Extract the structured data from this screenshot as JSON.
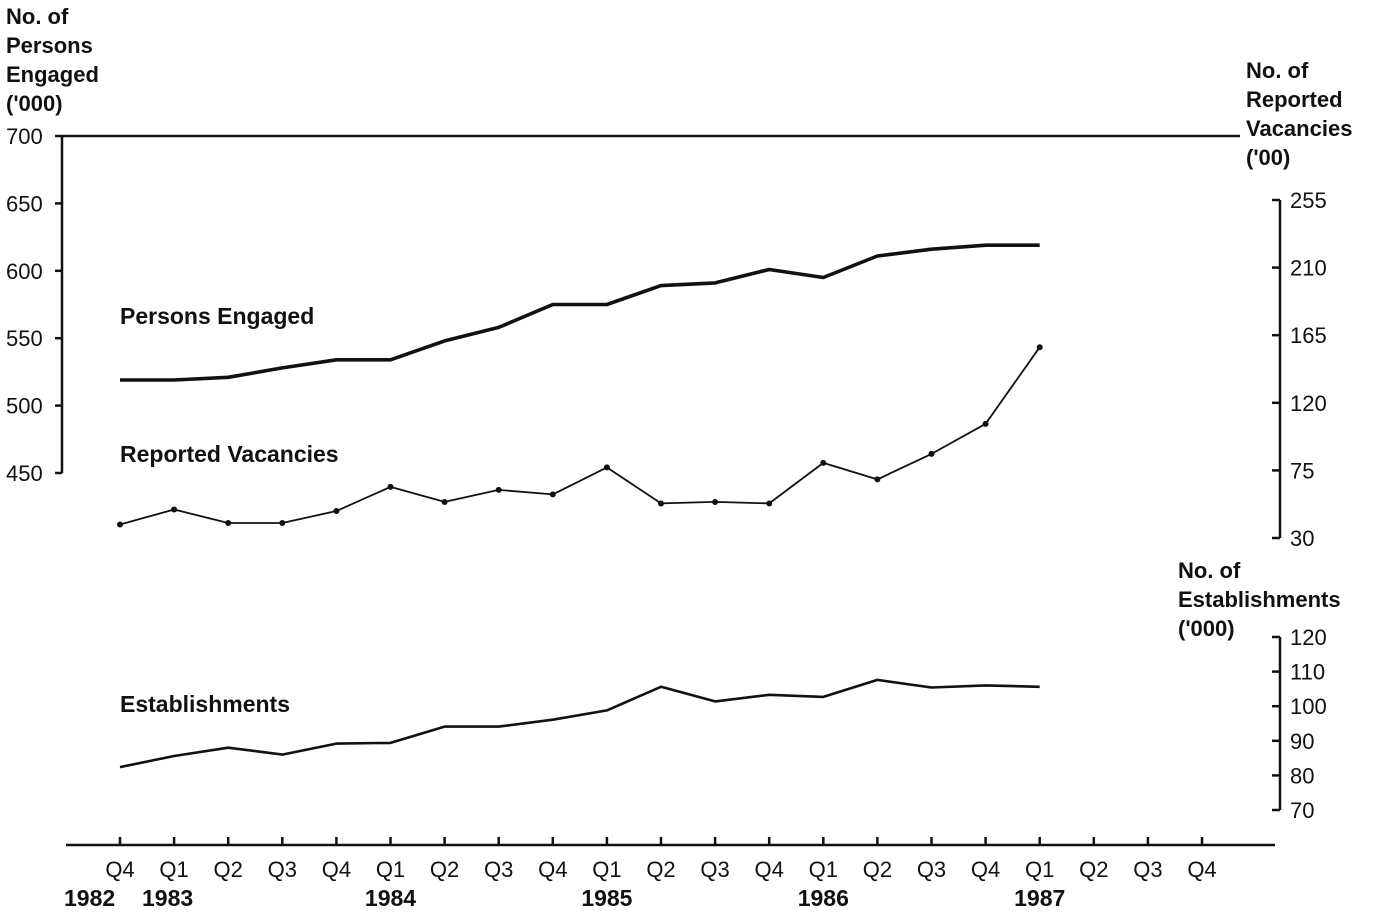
{
  "chart_data": {
    "type": "line",
    "x_axis": {
      "quarters": [
        "Q4",
        "Q1",
        "Q2",
        "Q3",
        "Q4",
        "Q1",
        "Q2",
        "Q3",
        "Q4",
        "Q1",
        "Q2",
        "Q3",
        "Q4",
        "Q1",
        "Q2",
        "Q3",
        "Q4",
        "Q1",
        "Q2",
        "Q3",
        "Q4"
      ],
      "years": [
        {
          "label": "1982",
          "quarter_index": 0
        },
        {
          "label": "1983",
          "quarter_index": 1
        },
        {
          "label": "1984",
          "quarter_index": 5
        },
        {
          "label": "1985",
          "quarter_index": 9
        },
        {
          "label": "1986",
          "quarter_index": 13
        },
        {
          "label": "1987",
          "quarter_index": 17
        }
      ]
    },
    "axes": {
      "persons": {
        "title": [
          "No. of",
          "Persons",
          "Engaged",
          "('000)"
        ],
        "ticks": [
          700,
          650,
          600,
          550,
          500,
          450
        ],
        "range": [
          450,
          700
        ]
      },
      "vacancies": {
        "title": [
          "No. of",
          "Reported",
          "Vacancies",
          "('00)"
        ],
        "ticks": [
          255,
          210,
          165,
          120,
          75,
          30
        ],
        "range": [
          30,
          255
        ]
      },
      "establishments": {
        "title": [
          "No. of",
          "Establishments",
          "('000)"
        ],
        "ticks": [
          120,
          110,
          100,
          90,
          80,
          70
        ],
        "range": [
          70,
          120
        ]
      }
    },
    "series": [
      {
        "name": "Persons Engaged",
        "axis": "persons",
        "style": "solid-thick",
        "values": [
          519,
          519,
          521,
          528,
          534,
          534,
          548,
          558,
          575,
          575,
          589,
          591,
          601,
          595,
          611,
          616,
          619,
          619
        ]
      },
      {
        "name": "Reported Vacancies",
        "axis": "vacancies",
        "style": "dot-dash",
        "values": [
          39,
          49,
          40,
          40,
          48,
          64,
          54,
          62,
          59,
          77,
          53,
          54,
          53,
          80,
          69,
          86,
          106,
          157
        ]
      },
      {
        "name": "Establishments",
        "axis": "establishments",
        "style": "solid",
        "values": [
          82.4,
          85.6,
          88.0,
          86.0,
          89.2,
          89.4,
          94.1,
          94.1,
          96.1,
          98.8,
          105.6,
          101.4,
          103.3,
          102.7,
          107.6,
          105.4,
          106.0,
          105.6
        ]
      }
    ],
    "grid": false
  }
}
